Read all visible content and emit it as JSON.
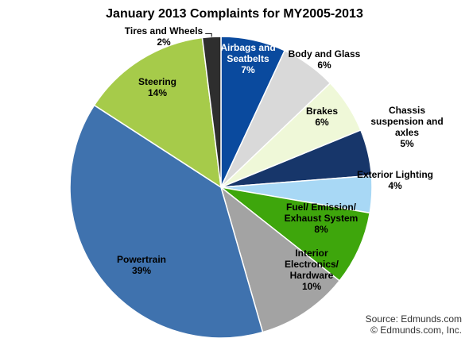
{
  "chart_data": {
    "type": "pie",
    "title": "January 2013 Complaints for MY2005-2013",
    "unit": "%",
    "slices": [
      {
        "name": "Airbags and Seatbelts",
        "value": 7,
        "label_lines": [
          "Airbags and",
          "Seatbelts",
          "7%"
        ],
        "color": "#0A4A9E",
        "label_color": "#FFFFFF"
      },
      {
        "name": "Body and Glass",
        "value": 6,
        "label_lines": [
          "Body and Glass",
          "6%"
        ],
        "color": "#D9D9D9",
        "label_color": "#000000"
      },
      {
        "name": "Brakes",
        "value": 6,
        "label_lines": [
          "Brakes",
          "6%"
        ],
        "color": "#EFF8D8",
        "label_color": "#000000"
      },
      {
        "name": "Chassis suspension and axles",
        "value": 5,
        "label_lines": [
          "Chassis",
          "suspension and",
          "axles",
          "5%"
        ],
        "color": "#17366A",
        "label_color": "#000000"
      },
      {
        "name": "Exterior Lighting",
        "value": 4,
        "label_lines": [
          "Exterior Lighting",
          "4%"
        ],
        "color": "#A8D8F5",
        "label_color": "#000000"
      },
      {
        "name": "Fuel/ Emission/ Exhaust System",
        "value": 8,
        "label_lines": [
          "Fuel/ Emission/",
          "Exhaust System",
          "8%"
        ],
        "color": "#3EA60C",
        "label_color": "#000000"
      },
      {
        "name": "Interior Electronics/ Hardware",
        "value": 10,
        "label_lines": [
          "Interior",
          "Electronics/",
          "Hardware",
          "10%"
        ],
        "color": "#A3A3A3",
        "label_color": "#000000"
      },
      {
        "name": "Powertrain",
        "value": 39,
        "label_lines": [
          "Powertrain",
          "39%"
        ],
        "color": "#3F72AE",
        "label_color": "#000000"
      },
      {
        "name": "Steering",
        "value": 14,
        "label_lines": [
          "Steering",
          "14%"
        ],
        "color": "#A6CB4A",
        "label_color": "#000000"
      },
      {
        "name": "Tires and Wheels",
        "value": 2,
        "label_lines": [
          "Tires and Wheels",
          "2%"
        ],
        "color": "#2E2E2E",
        "label_color": "#000000"
      }
    ],
    "start_angle": "12 o'clock",
    "direction": "clockwise",
    "legend": "none",
    "source": [
      "Source: Edmunds.com",
      "© Edmunds.com, Inc."
    ]
  }
}
